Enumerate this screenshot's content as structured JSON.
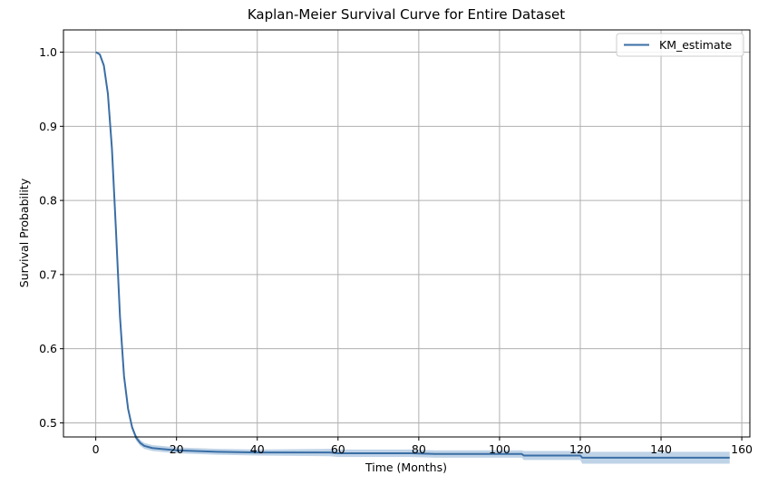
{
  "chart_data": {
    "type": "line",
    "title": "Kaplan-Meier Survival Curve for Entire Dataset",
    "xlabel": "Time (Months)",
    "ylabel": "Survival Probability",
    "xlim": [
      -8,
      162
    ],
    "ylim": [
      0.481,
      1.03
    ],
    "xticks": [
      0,
      20,
      40,
      60,
      80,
      100,
      120,
      140,
      160
    ],
    "yticks": [
      0.5,
      0.6,
      0.7,
      0.8,
      0.9,
      1.0
    ],
    "xtick_labels": [
      "0",
      "20",
      "40",
      "60",
      "80",
      "100",
      "120",
      "140",
      "160"
    ],
    "ytick_labels": [
      "0.5",
      "0.6",
      "0.7",
      "0.8",
      "0.9",
      "1.0"
    ],
    "grid": true,
    "legend_position": "top-right",
    "colors": {
      "line": "#3a6ea5",
      "band": "#a9c4df"
    },
    "series": [
      {
        "name": "KM_estimate",
        "x": [
          0,
          1,
          2,
          3,
          4,
          5,
          6,
          7,
          8,
          9,
          10,
          11,
          12,
          14,
          16,
          20,
          30,
          40,
          58,
          60,
          78,
          84,
          100,
          105.5,
          106,
          120,
          120.5,
          140,
          157
        ],
        "y": [
          1.0,
          0.997,
          0.982,
          0.944,
          0.87,
          0.76,
          0.643,
          0.563,
          0.519,
          0.494,
          0.48,
          0.473,
          0.469,
          0.466,
          0.465,
          0.463,
          0.461,
          0.46,
          0.46,
          0.459,
          0.459,
          0.458,
          0.458,
          0.458,
          0.456,
          0.456,
          0.453,
          0.453,
          0.453
        ],
        "ci_lower": [
          1.0,
          0.996,
          0.98,
          0.941,
          0.866,
          0.756,
          0.639,
          0.559,
          0.515,
          0.49,
          0.476,
          0.469,
          0.465,
          0.462,
          0.461,
          0.459,
          0.457,
          0.456,
          0.455,
          0.454,
          0.454,
          0.453,
          0.453,
          0.453,
          0.45,
          0.45,
          0.445,
          0.445,
          0.445
        ],
        "ci_upper": [
          1.0,
          0.998,
          0.984,
          0.947,
          0.874,
          0.764,
          0.647,
          0.567,
          0.523,
          0.498,
          0.484,
          0.477,
          0.473,
          0.47,
          0.469,
          0.467,
          0.465,
          0.464,
          0.465,
          0.464,
          0.464,
          0.463,
          0.463,
          0.463,
          0.462,
          0.462,
          0.461,
          0.461,
          0.461
        ]
      }
    ]
  }
}
